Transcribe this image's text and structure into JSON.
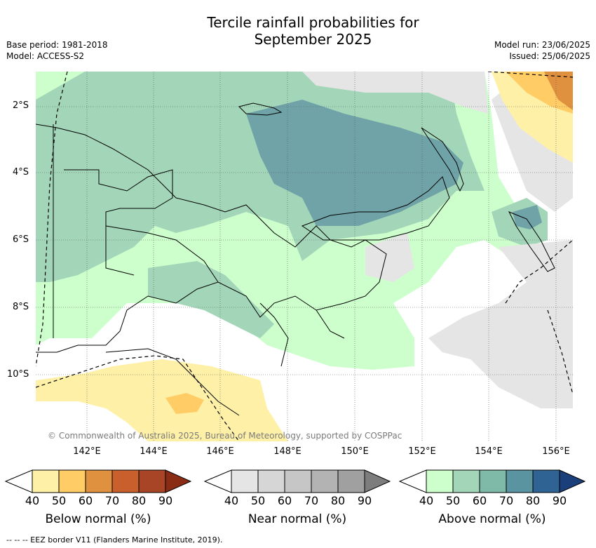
{
  "title_line1": "Tercile rainfall probabilities for",
  "title_line2": "September 2025",
  "meta": {
    "base_period": "Base period: 1981-2018",
    "model": "Model: ACCESS-S2",
    "model_run": "Model run: 23/06/2025",
    "issued": "Issued: 25/06/2025"
  },
  "map": {
    "lat_labels": [
      "2°S",
      "4°S",
      "6°S",
      "8°S",
      "10°S"
    ],
    "lon_labels": [
      "142°E",
      "144°E",
      "146°E",
      "148°E",
      "150°E",
      "152°E",
      "154°E",
      "156°E"
    ],
    "copyright": "© Commonwealth of Australia 2025, Bureau of Meteorology, supported by COSPPac"
  },
  "legend": {
    "ticks": [
      "40",
      "50",
      "60",
      "70",
      "80",
      "90"
    ],
    "below": {
      "title": "Below normal (%)",
      "colors": [
        "#fff0a8",
        "#ffcc66",
        "#e0913f",
        "#c85f2c",
        "#a84526",
        "#8a2c14"
      ]
    },
    "near": {
      "title": "Near normal (%)",
      "colors": [
        "#e5e5e5",
        "#d6d6d6",
        "#c6c6c6",
        "#b3b3b3",
        "#a0a0a0",
        "#7d7d7d"
      ]
    },
    "above": {
      "title": "Above normal (%)",
      "colors": [
        "#ccffcc",
        "#a3d6b8",
        "#7fb9a8",
        "#5a94a0",
        "#2f6394",
        "#1a3f7a"
      ]
    }
  },
  "footer": "--  --  -- EEZ border V11 (Flanders Marine Institute, 2019)."
}
